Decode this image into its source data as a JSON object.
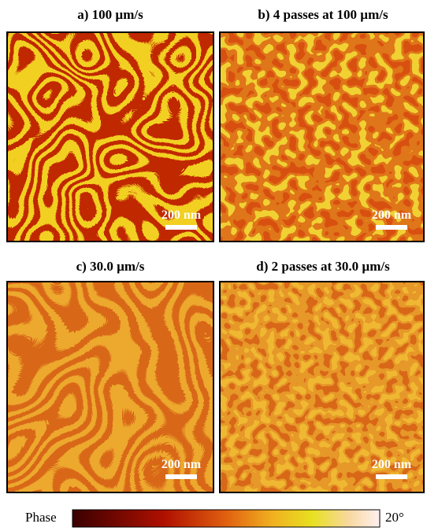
{
  "panels": [
    {
      "title": "a) 100 µm/s",
      "scale_bar": "200 nm"
    },
    {
      "title": "b) 4 passes at  100 µm/s",
      "scale_bar": "200 nm"
    },
    {
      "title": "c) 30.0 µm/s",
      "scale_bar": "200 nm"
    },
    {
      "title": "d) 2 passes at 30.0 µm/s",
      "scale_bar": "200 nm"
    }
  ],
  "colorbar": {
    "label": "Phase",
    "max_label": "20°"
  }
}
